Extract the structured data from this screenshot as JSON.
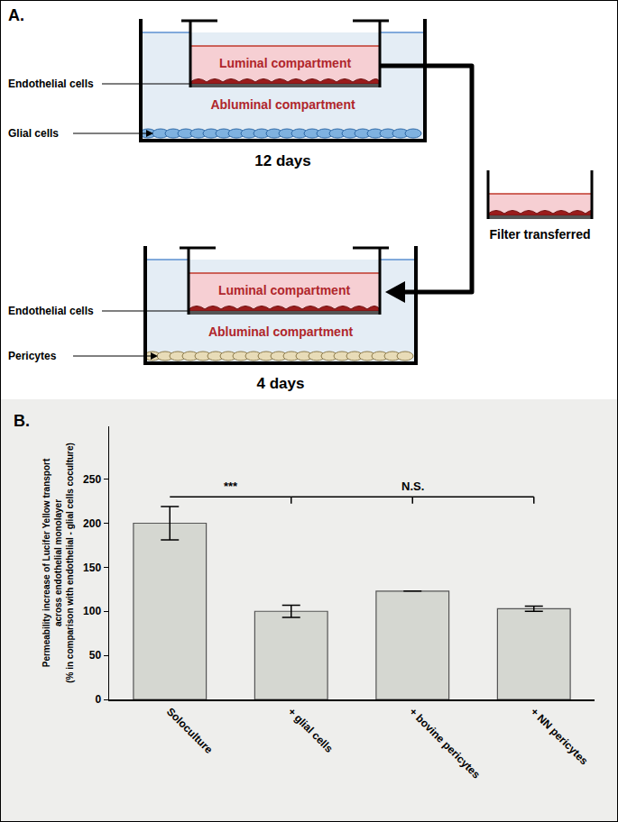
{
  "diagram": {
    "panel_label": "A.",
    "top_setup": {
      "luminal": "Luminal compartment",
      "abluminal": "Abluminal compartment",
      "endothelial": "Endothelial cells",
      "bottom_cells": "Glial cells",
      "duration": "12 days"
    },
    "bottom_setup": {
      "luminal": "Luminal compartment",
      "abluminal": "Abluminal compartment",
      "endothelial": "Endothelial cells",
      "bottom_cells": "Pericytes",
      "duration": "4 days"
    },
    "transfer": "Filter transferred"
  },
  "chart_data": {
    "panel_label": "B.",
    "type": "bar",
    "categories": [
      "Soloculture",
      "+ glial cells",
      "+ bovine pericytes",
      "+ NN pericytes"
    ],
    "values": [
      200,
      100,
      123,
      103
    ],
    "errors": [
      19,
      7,
      0,
      3
    ],
    "color": "#d5d7d1",
    "ylabel": [
      "Permeability increase of Lucifer Yellow transport",
      "across endothelial monolayer",
      "(% in comparison with endothelial - glial cells coculture)"
    ],
    "ylim": [
      0,
      310
    ],
    "yticks": [
      0,
      50,
      100,
      150,
      200,
      250
    ],
    "annotations": [
      {
        "text": "***",
        "from": 0,
        "to": 1,
        "y": 230
      },
      {
        "text": "N.S.",
        "from": 1,
        "to": 3,
        "y": 230
      }
    ]
  }
}
